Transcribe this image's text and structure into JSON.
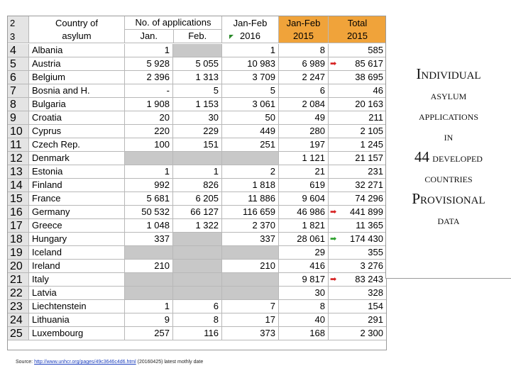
{
  "title": {
    "line1": "Individual",
    "line2": "asylum",
    "line3": "applications",
    "line4": "in",
    "line5_number": "44",
    "line5_word": "developed",
    "line6": "countries",
    "line7": "Provisional",
    "line8": "data"
  },
  "header": {
    "row_a": "2",
    "row_b": "3",
    "country_line1": "Country of",
    "country_line2": "asylum",
    "apps_line1": "No. of applications",
    "apps_jan": "Jan.",
    "apps_feb": "Feb.",
    "jf2016_line1": "Jan-Feb",
    "jf2016_line2": "2016",
    "jf2015_line1": "Jan-Feb",
    "jf2015_line2": "2015",
    "total_line1": "Total",
    "total_line2": "2015"
  },
  "rows": [
    {
      "n": "4",
      "country": "Albania",
      "jan": "1",
      "feb": "",
      "jf16": "1",
      "jf15": "8",
      "total": "585"
    },
    {
      "n": "5",
      "country": "Austria",
      "jan": "5 928",
      "feb": "5 055",
      "jf16": "10 983",
      "jf15": "6 989",
      "total": "85 617"
    },
    {
      "n": "6",
      "country": "Belgium",
      "jan": "2 396",
      "feb": "1 313",
      "jf16": "3 709",
      "jf15": "2 247",
      "total": "38 695"
    },
    {
      "n": "7",
      "country": "Bosnia and H.",
      "jan": "-",
      "feb": "5",
      "jf16": "5",
      "jf15": "6",
      "total": "46"
    },
    {
      "n": "8",
      "country": "Bulgaria",
      "jan": "1 908",
      "feb": "1 153",
      "jf16": "3 061",
      "jf15": "2 084",
      "total": "20 163"
    },
    {
      "n": "9",
      "country": "Croatia",
      "jan": "20",
      "feb": "30",
      "jf16": "50",
      "jf15": "49",
      "total": "211"
    },
    {
      "n": "10",
      "country": "Cyprus",
      "jan": "220",
      "feb": "229",
      "jf16": "449",
      "jf15": "280",
      "total": "2 105"
    },
    {
      "n": "11",
      "country": "Czech Rep.",
      "jan": "100",
      "feb": "151",
      "jf16": "251",
      "jf15": "197",
      "total": "1 245"
    },
    {
      "n": "12",
      "country": "Denmark",
      "jan": "",
      "feb": "",
      "jf16": "",
      "jf15": "1 121",
      "total": "21 157"
    },
    {
      "n": "13",
      "country": "Estonia",
      "jan": "1",
      "feb": "1",
      "jf16": "2",
      "jf15": "21",
      "total": "231"
    },
    {
      "n": "14",
      "country": "Finland",
      "jan": "992",
      "feb": "826",
      "jf16": "1 818",
      "jf15": "619",
      "total": "32 271"
    },
    {
      "n": "15",
      "country": "France",
      "jan": "5 681",
      "feb": "6 205",
      "jf16": "11 886",
      "jf15": "9 604",
      "total": "74 296"
    },
    {
      "n": "16",
      "country": "Germany",
      "jan": "50 532",
      "feb": "66 127",
      "jf16": "116 659",
      "jf15": "46 986",
      "total": "441 899"
    },
    {
      "n": "17",
      "country": "Greece",
      "jan": "1 048",
      "feb": "1 322",
      "jf16": "2 370",
      "jf15": "1 821",
      "total": "11 365"
    },
    {
      "n": "18",
      "country": "Hungary",
      "jan": "337",
      "feb": "",
      "jf16": "337",
      "jf15": "28 061",
      "total": "174 430"
    },
    {
      "n": "19",
      "country": "Iceland",
      "jan": "",
      "feb": "",
      "jf16": "",
      "jf15": "29",
      "total": "355"
    },
    {
      "n": "20",
      "country": "Ireland",
      "jan": "210",
      "feb": "",
      "jf16": "210",
      "jf15": "416",
      "total": "3 276"
    },
    {
      "n": "21",
      "country": "Italy",
      "jan": "",
      "feb": "",
      "jf16": "",
      "jf15": "9 817",
      "total": "83 243"
    },
    {
      "n": "22",
      "country": "Latvia",
      "jan": "",
      "feb": "",
      "jf16": "",
      "jf15": "30",
      "total": "328"
    },
    {
      "n": "23",
      "country": "Liechtenstein",
      "jan": "1",
      "feb": "6",
      "jf16": "7",
      "jf15": "8",
      "total": "154"
    },
    {
      "n": "24",
      "country": "Lithuania",
      "jan": "9",
      "feb": "8",
      "jf16": "17",
      "jf15": "40",
      "total": "291"
    },
    {
      "n": "25",
      "country": "Luxembourg",
      "jan": "257",
      "feb": "116",
      "jf16": "373",
      "jf15": "168",
      "total": "2 300"
    }
  ],
  "gray_cells": [
    [
      0,
      "feb"
    ],
    [
      8,
      "jan"
    ],
    [
      8,
      "feb"
    ],
    [
      8,
      "jf16"
    ],
    [
      14,
      "feb"
    ],
    [
      15,
      "jan"
    ],
    [
      15,
      "feb"
    ],
    [
      15,
      "jf16"
    ],
    [
      16,
      "feb"
    ],
    [
      17,
      "jan"
    ],
    [
      17,
      "feb"
    ],
    [
      17,
      "jf16"
    ],
    [
      18,
      "jan"
    ],
    [
      18,
      "feb"
    ],
    [
      18,
      "jf16"
    ]
  ],
  "arrows": [
    {
      "row": 1,
      "color": "red",
      "glyph": "➡"
    },
    {
      "row": 12,
      "color": "red",
      "glyph": "➡"
    },
    {
      "row": 14,
      "color": "green",
      "glyph": "➡"
    },
    {
      "row": 17,
      "color": "red",
      "glyph": "➡"
    }
  ],
  "source": {
    "prefix": "Source:",
    "link": "http://www.unhcr.org/pages/49c3646c4d6.html",
    "suffix": "(20160425) latest mothly date"
  },
  "colors": {
    "orange_header": "#f0a33a",
    "gray_cell": "#c8c8c8",
    "rownum_bg": "#e4e4e4"
  }
}
